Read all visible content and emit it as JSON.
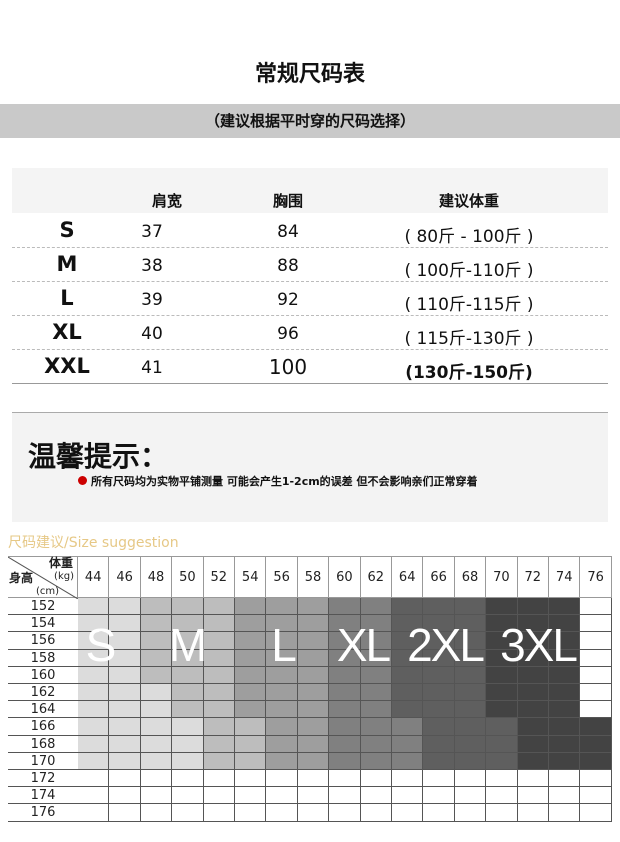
{
  "title": "常规尺码表",
  "subtitle": "（建议根据平时穿的尺码选择）",
  "size_table": {
    "headers": [
      "肩宽",
      "胸围",
      "建议体重"
    ],
    "rows": [
      {
        "size": "S",
        "shoulder": "37",
        "chest": "84",
        "weight": "( 80斤 - 100斤 )"
      },
      {
        "size": "M",
        "shoulder": "38",
        "chest": "88",
        "weight": "( 100斤-110斤 )"
      },
      {
        "size": "L",
        "shoulder": "39",
        "chest": "92",
        "weight": "( 110斤-115斤 )"
      },
      {
        "size": "XL",
        "shoulder": "40",
        "chest": "96",
        "weight": "( 115斤-130斤 )"
      },
      {
        "size": "XXL",
        "shoulder": "41",
        "chest": "100",
        "weight": "(130斤-150斤)"
      }
    ]
  },
  "tip": {
    "title": "温馨提示：",
    "note": "所有尺码均为实物平铺测量 可能会产生1-2cm的误差 但不会影响亲们正常穿着",
    "bullet_color": "#cc0000"
  },
  "suggestion": {
    "label": "尺码建议/Size suggestion",
    "label_color": "#e6c886",
    "corner": {
      "weight": "体重",
      "weight_unit": "(kg)",
      "height": "身高",
      "height_unit": "(cm)"
    },
    "weights": [
      "44",
      "46",
      "48",
      "50",
      "52",
      "54",
      "56",
      "58",
      "60",
      "62",
      "64",
      "66",
      "68",
      "70",
      "72",
      "74",
      "76"
    ],
    "heights": [
      "152",
      "154",
      "156",
      "158",
      "160",
      "162",
      "164",
      "166",
      "168",
      "170",
      "172",
      "174",
      "176"
    ],
    "size_labels": [
      "S",
      "M",
      "L",
      "XL",
      "2XL",
      "3XL"
    ],
    "shade_colors": [
      "#ffffff",
      "#dcdcdc",
      "#bdbdbd",
      "#9e9e9e",
      "#808080",
      "#5f5f5f",
      "#434343"
    ],
    "shades": [
      [
        1,
        1,
        2,
        2,
        2,
        3,
        3,
        3,
        4,
        4,
        5,
        5,
        5,
        6,
        6,
        6,
        0
      ],
      [
        1,
        1,
        2,
        2,
        2,
        3,
        3,
        3,
        4,
        4,
        5,
        5,
        5,
        6,
        6,
        6,
        0
      ],
      [
        1,
        1,
        2,
        2,
        2,
        3,
        3,
        3,
        4,
        4,
        5,
        5,
        5,
        6,
        6,
        6,
        0
      ],
      [
        1,
        1,
        2,
        2,
        2,
        3,
        3,
        3,
        4,
        4,
        5,
        5,
        5,
        6,
        6,
        6,
        0
      ],
      [
        1,
        1,
        2,
        2,
        2,
        3,
        3,
        3,
        4,
        4,
        5,
        5,
        5,
        6,
        6,
        6,
        0
      ],
      [
        1,
        1,
        1,
        2,
        2,
        3,
        3,
        3,
        4,
        4,
        5,
        5,
        5,
        6,
        6,
        6,
        0
      ],
      [
        1,
        1,
        1,
        2,
        2,
        3,
        3,
        3,
        4,
        4,
        5,
        5,
        5,
        6,
        6,
        6,
        0
      ],
      [
        1,
        1,
        1,
        1,
        2,
        2,
        3,
        3,
        4,
        4,
        4,
        5,
        5,
        5,
        6,
        6,
        6
      ],
      [
        1,
        1,
        1,
        1,
        2,
        2,
        3,
        3,
        4,
        4,
        4,
        5,
        5,
        5,
        6,
        6,
        6
      ],
      [
        1,
        1,
        1,
        1,
        2,
        2,
        3,
        3,
        4,
        4,
        4,
        5,
        5,
        5,
        6,
        6,
        6
      ],
      [
        0,
        0,
        0,
        0,
        0,
        0,
        0,
        0,
        0,
        0,
        0,
        0,
        0,
        0,
        0,
        0,
        0
      ],
      [
        0,
        0,
        0,
        0,
        0,
        0,
        0,
        0,
        0,
        0,
        0,
        0,
        0,
        0,
        0,
        0,
        0
      ],
      [
        0,
        0,
        0,
        0,
        0,
        0,
        0,
        0,
        0,
        0,
        0,
        0,
        0,
        0,
        0,
        0,
        0
      ]
    ]
  }
}
